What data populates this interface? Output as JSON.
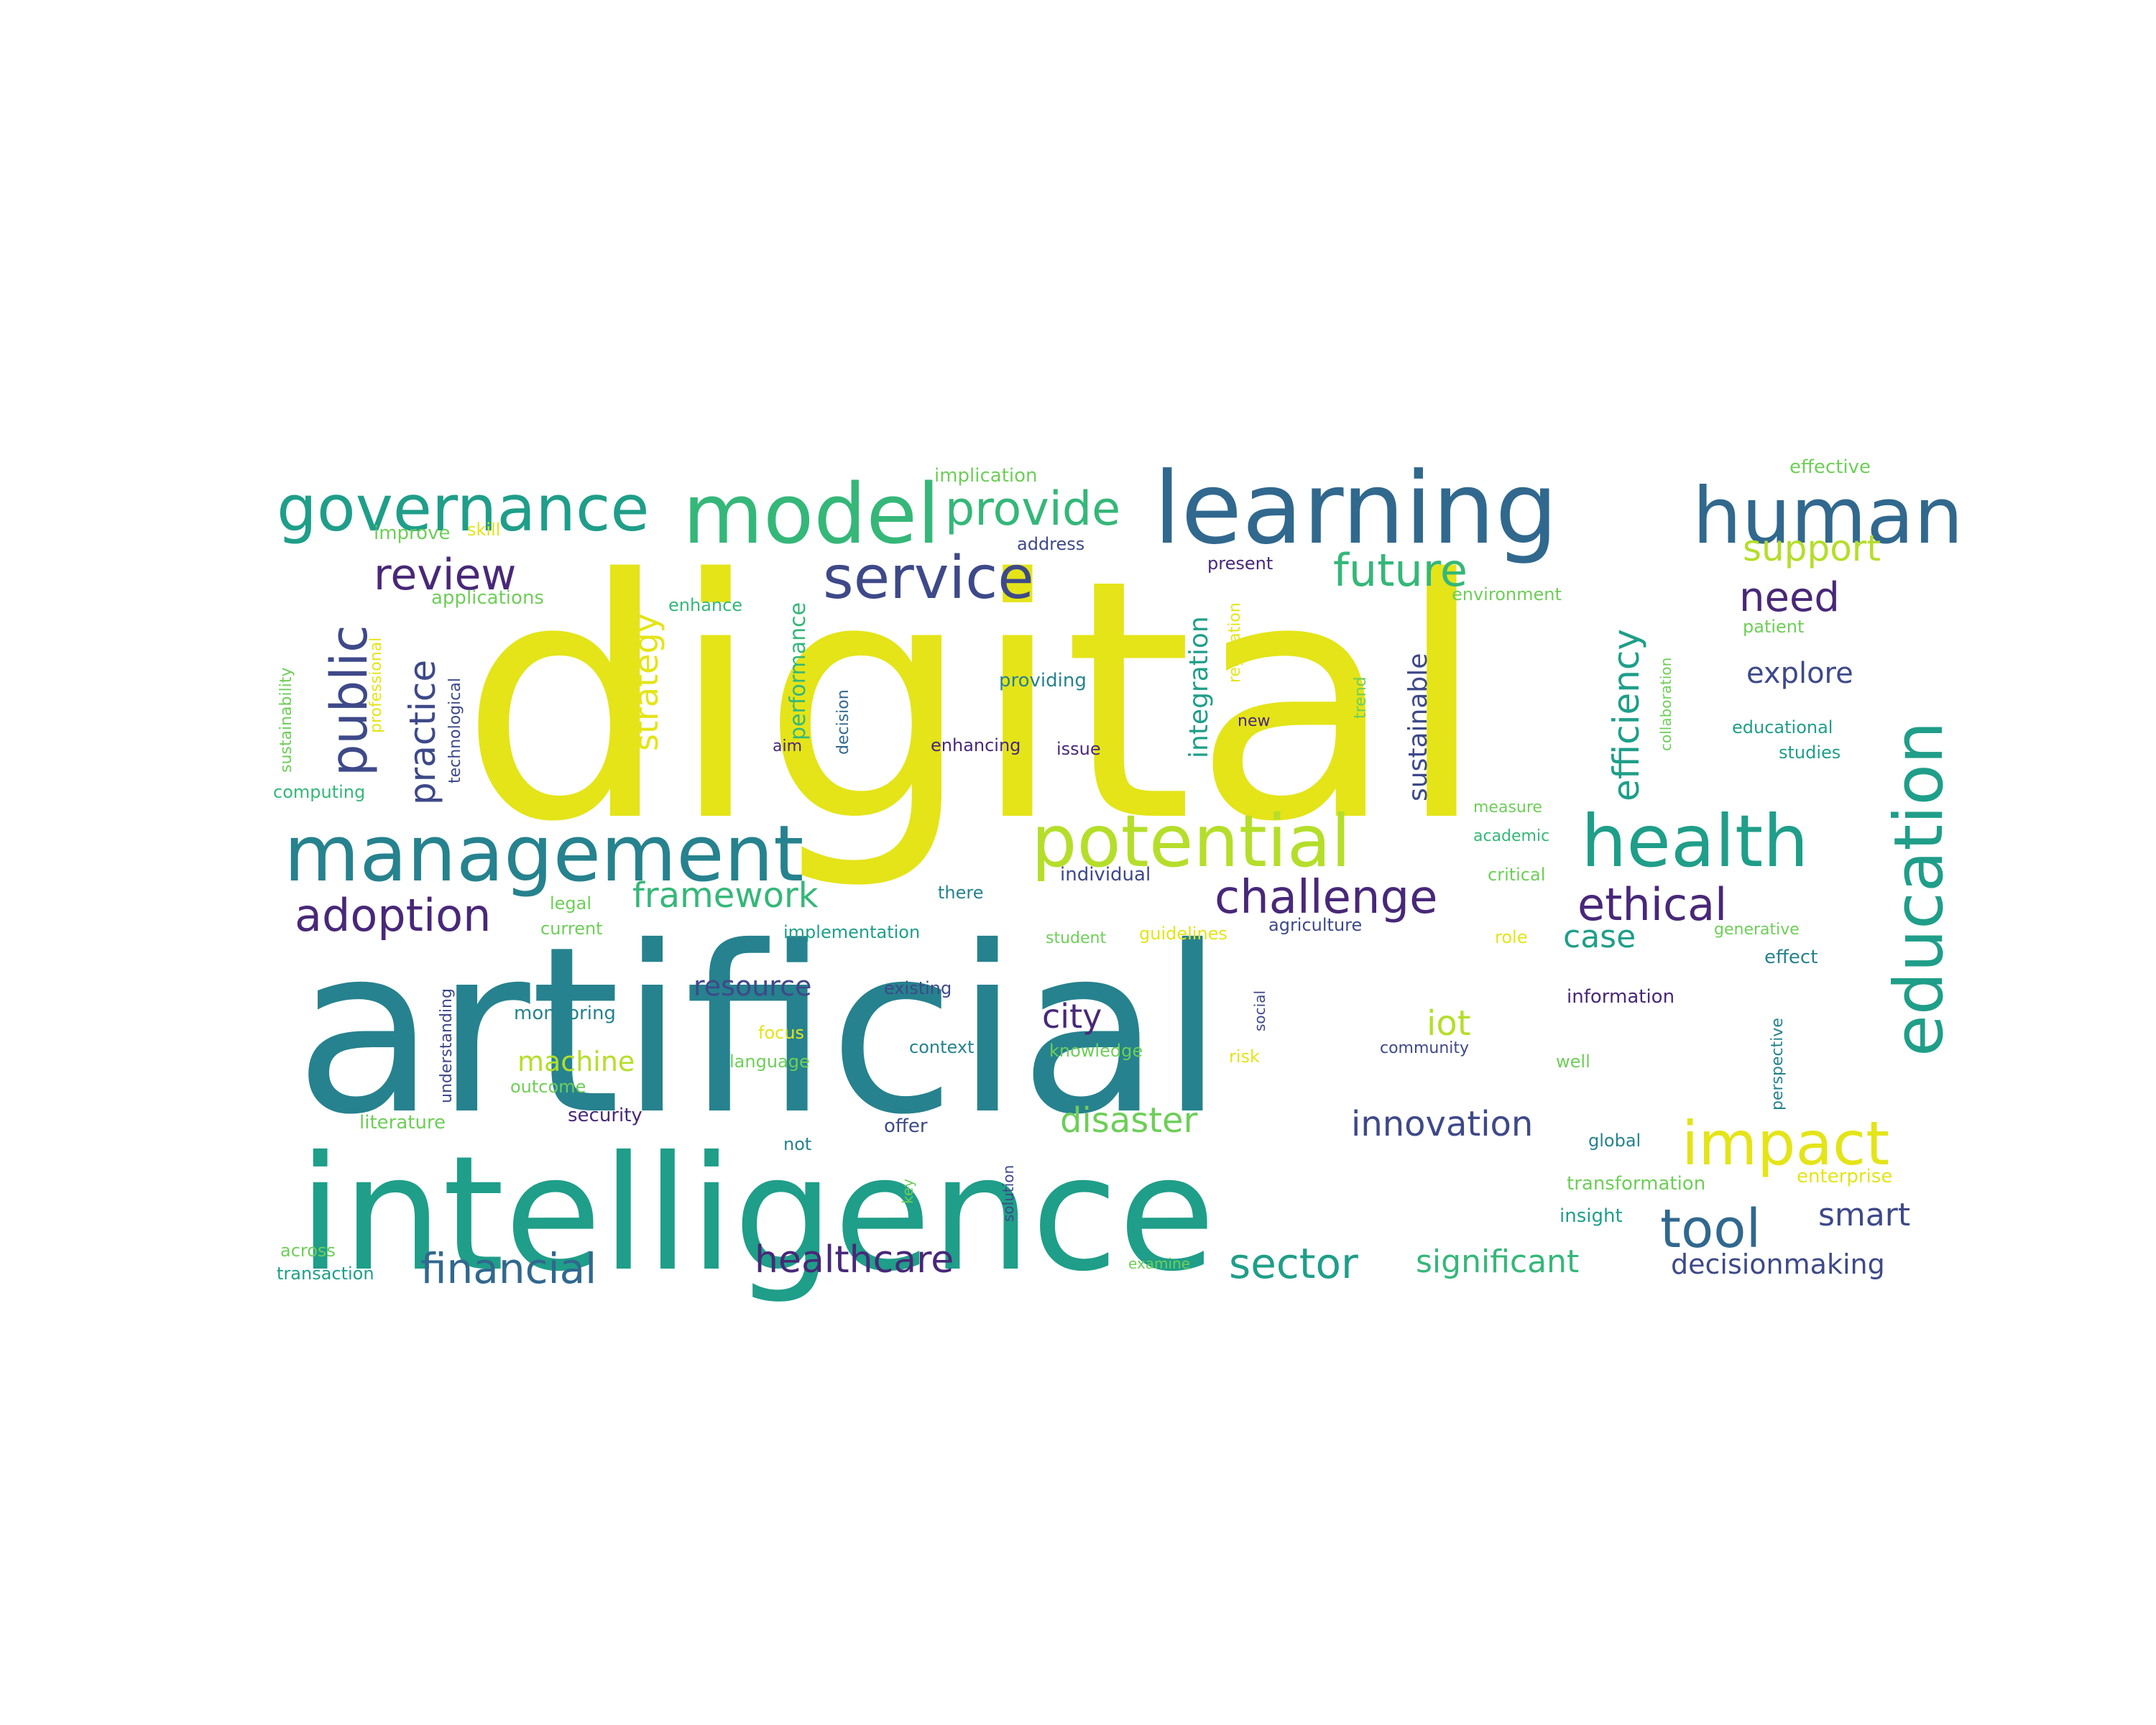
{
  "palette": {
    "yellow": "#e4e419",
    "lime": "#b5de2b",
    "green": "#6ece58",
    "mint": "#35b779",
    "teal": "#1f9e89",
    "tealblue": "#26828e",
    "blue": "#31688e",
    "indigo": "#3e4989",
    "purple": "#482878",
    "darkpurple": "#440154"
  },
  "words": [
    {
      "text": "digital",
      "color": "yellow"
    },
    {
      "text": "artificial",
      "color": "tealblue"
    },
    {
      "text": "intelligence",
      "color": "teal"
    },
    {
      "text": "learning",
      "color": "blue"
    },
    {
      "text": "model",
      "color": "mint"
    },
    {
      "text": "governance",
      "color": "teal"
    },
    {
      "text": "human",
      "color": "blue"
    },
    {
      "text": "management",
      "color": "tealblue"
    },
    {
      "text": "potential",
      "color": "lime"
    },
    {
      "text": "health",
      "color": "teal"
    },
    {
      "text": "education",
      "color": "teal"
    },
    {
      "text": "public",
      "color": "indigo"
    },
    {
      "text": "service",
      "color": "indigo"
    },
    {
      "text": "provide",
      "color": "mint"
    },
    {
      "text": "review",
      "color": "purple"
    },
    {
      "text": "future",
      "color": "mint"
    },
    {
      "text": "support",
      "color": "lime"
    },
    {
      "text": "need",
      "color": "purple"
    },
    {
      "text": "strategy",
      "color": "yellow"
    },
    {
      "text": "practice",
      "color": "indigo"
    },
    {
      "text": "efficiency",
      "color": "teal"
    },
    {
      "text": "sustainable",
      "color": "indigo"
    },
    {
      "text": "integration",
      "color": "teal"
    },
    {
      "text": "performance",
      "color": "mint"
    },
    {
      "text": "explore",
      "color": "indigo"
    },
    {
      "text": "adoption",
      "color": "purple"
    },
    {
      "text": "framework",
      "color": "mint"
    },
    {
      "text": "challenge",
      "color": "purple"
    },
    {
      "text": "ethical",
      "color": "purple"
    },
    {
      "text": "case",
      "color": "teal"
    },
    {
      "text": "resource",
      "color": "indigo"
    },
    {
      "text": "city",
      "color": "purple"
    },
    {
      "text": "iot",
      "color": "lime"
    },
    {
      "text": "machine",
      "color": "lime"
    },
    {
      "text": "disaster",
      "color": "green"
    },
    {
      "text": "innovation",
      "color": "indigo"
    },
    {
      "text": "impact",
      "color": "yellow"
    },
    {
      "text": "tool",
      "color": "blue"
    },
    {
      "text": "smart",
      "color": "indigo"
    },
    {
      "text": "financial",
      "color": "blue"
    },
    {
      "text": "healthcare",
      "color": "purple"
    },
    {
      "text": "sector",
      "color": "teal"
    },
    {
      "text": "significant",
      "color": "mint"
    },
    {
      "text": "decisionmaking",
      "color": "indigo"
    },
    {
      "text": "implication",
      "color": "green"
    },
    {
      "text": "effective",
      "color": "green"
    },
    {
      "text": "improve",
      "color": "green"
    },
    {
      "text": "skill",
      "color": "yellow"
    },
    {
      "text": "address",
      "color": "indigo"
    },
    {
      "text": "present",
      "color": "purple"
    },
    {
      "text": "applications",
      "color": "green"
    },
    {
      "text": "enhance",
      "color": "mint"
    },
    {
      "text": "environment",
      "color": "green"
    },
    {
      "text": "patient",
      "color": "green"
    },
    {
      "text": "sustainability",
      "color": "green"
    },
    {
      "text": "professional",
      "color": "yellow"
    },
    {
      "text": "technological",
      "color": "indigo"
    },
    {
      "text": "providing",
      "color": "tealblue"
    },
    {
      "text": "decision",
      "color": "blue"
    },
    {
      "text": "regulation",
      "color": "yellow"
    },
    {
      "text": "trend",
      "color": "green"
    },
    {
      "text": "collaboration",
      "color": "green"
    },
    {
      "text": "educational",
      "color": "teal"
    },
    {
      "text": "studies",
      "color": "teal"
    },
    {
      "text": "aim",
      "color": "purple"
    },
    {
      "text": "enhancing",
      "color": "purple"
    },
    {
      "text": "issue",
      "color": "purple"
    },
    {
      "text": "new",
      "color": "purple"
    },
    {
      "text": "computing",
      "color": "mint"
    },
    {
      "text": "measure",
      "color": "green"
    },
    {
      "text": "academic",
      "color": "mint"
    },
    {
      "text": "individual",
      "color": "indigo"
    },
    {
      "text": "critical",
      "color": "green"
    },
    {
      "text": "there",
      "color": "tealblue"
    },
    {
      "text": "legal",
      "color": "green"
    },
    {
      "text": "current",
      "color": "green"
    },
    {
      "text": "implementation",
      "color": "teal"
    },
    {
      "text": "student",
      "color": "green"
    },
    {
      "text": "guidelines",
      "color": "yellow"
    },
    {
      "text": "agriculture",
      "color": "indigo"
    },
    {
      "text": "generative",
      "color": "green"
    },
    {
      "text": "role",
      "color": "yellow"
    },
    {
      "text": "effect",
      "color": "tealblue"
    },
    {
      "text": "understanding",
      "color": "indigo"
    },
    {
      "text": "existing",
      "color": "indigo"
    },
    {
      "text": "information",
      "color": "purple"
    },
    {
      "text": "monitoring",
      "color": "tealblue"
    },
    {
      "text": "social",
      "color": "indigo"
    },
    {
      "text": "perspective",
      "color": "tealblue"
    },
    {
      "text": "focus",
      "color": "yellow"
    },
    {
      "text": "context",
      "color": "tealblue"
    },
    {
      "text": "knowledge",
      "color": "green"
    },
    {
      "text": "risk",
      "color": "yellow"
    },
    {
      "text": "community",
      "color": "indigo"
    },
    {
      "text": "language",
      "color": "green"
    },
    {
      "text": "well",
      "color": "green"
    },
    {
      "text": "outcome",
      "color": "green"
    },
    {
      "text": "literature",
      "color": "green"
    },
    {
      "text": "security",
      "color": "purple"
    },
    {
      "text": "offer",
      "color": "indigo"
    },
    {
      "text": "not",
      "color": "tealblue"
    },
    {
      "text": "global",
      "color": "tealblue"
    },
    {
      "text": "solution",
      "color": "indigo"
    },
    {
      "text": "key",
      "color": "green"
    },
    {
      "text": "transformation",
      "color": "green"
    },
    {
      "text": "enterprise",
      "color": "yellow"
    },
    {
      "text": "insight",
      "color": "teal"
    },
    {
      "text": "across",
      "color": "green"
    },
    {
      "text": "transaction",
      "color": "teal"
    },
    {
      "text": "examine",
      "color": "green"
    }
  ]
}
